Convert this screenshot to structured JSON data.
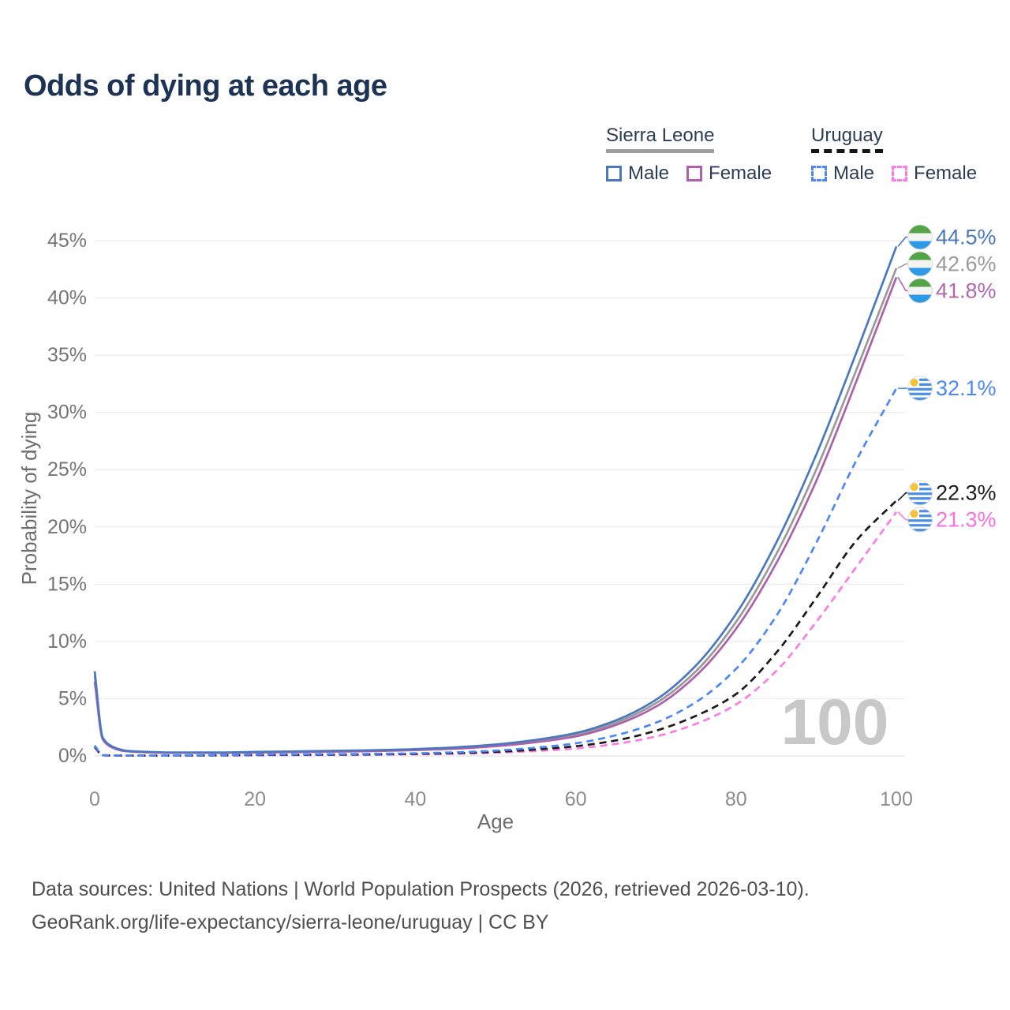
{
  "header": {
    "title": "Odds of dying at each age"
  },
  "legend": {
    "groups": [
      {
        "name": "Sierra Leone",
        "line_style": "solid",
        "underline_color": "#9e9e9e",
        "items": [
          {
            "label": "Male",
            "color": "#4a78c0",
            "dashed": false
          },
          {
            "label": "Female",
            "color": "#ac62a8",
            "dashed": false
          }
        ]
      },
      {
        "name": "Uruguay",
        "line_style": "dashed",
        "underline_color": "#151515",
        "items": [
          {
            "label": "Male",
            "color": "#4d86f5",
            "dashed": true
          },
          {
            "label": "Female",
            "color": "#fa7ce6",
            "dashed": true
          }
        ]
      }
    ]
  },
  "chart_data": {
    "type": "line",
    "title": "Odds of dying at each age",
    "xlabel": "Age",
    "ylabel": "Probability of dying",
    "xlim": [
      0,
      100
    ],
    "ylim_percent": [
      0,
      45
    ],
    "x_ticks": [
      0,
      20,
      40,
      60,
      80,
      100
    ],
    "y_ticks": [
      "0%",
      "5%",
      "10%",
      "15%",
      "20%",
      "25%",
      "30%",
      "35%",
      "40%",
      "45%"
    ],
    "grid": "horizontal",
    "age_watermark": "100",
    "x": [
      0,
      1,
      2,
      3,
      4,
      5,
      10,
      15,
      20,
      25,
      30,
      35,
      40,
      45,
      50,
      55,
      60,
      65,
      70,
      75,
      80,
      85,
      90,
      95,
      100
    ],
    "series": [
      {
        "id": "sl-male",
        "country": "Sierra Leone",
        "sex": "Male",
        "color": "#4a78c0",
        "dashed": false,
        "flag": "sierra-leone",
        "end_label": "44.5%",
        "label_color": "#4a78c0",
        "values": [
          7.4,
          1.6,
          0.9,
          0.6,
          0.45,
          0.4,
          0.3,
          0.3,
          0.35,
          0.4,
          0.45,
          0.5,
          0.6,
          0.75,
          1.0,
          1.4,
          2.0,
          3.1,
          4.9,
          7.9,
          12.4,
          18.6,
          26.3,
          35.2,
          44.5
        ]
      },
      {
        "id": "sl-both",
        "country": "Sierra Leone",
        "sex": "Both sexes",
        "color": "#9a9a9a",
        "dashed": false,
        "flag": "sierra-leone",
        "end_label": "42.6%",
        "label_color": "#9a9a9a",
        "values": [
          7.0,
          1.5,
          0.85,
          0.55,
          0.42,
          0.37,
          0.28,
          0.28,
          0.32,
          0.36,
          0.41,
          0.46,
          0.55,
          0.69,
          0.92,
          1.3,
          1.85,
          2.9,
          4.6,
          7.4,
          11.7,
          17.6,
          25.0,
          33.7,
          42.6
        ]
      },
      {
        "id": "sl-female",
        "country": "Sierra Leone",
        "sex": "Female",
        "color": "#ac62a8",
        "dashed": false,
        "flag": "sierra-leone",
        "end_label": "41.8%",
        "label_color": "#b266ae",
        "values": [
          6.5,
          1.45,
          0.8,
          0.52,
          0.4,
          0.35,
          0.26,
          0.26,
          0.29,
          0.33,
          0.37,
          0.42,
          0.51,
          0.63,
          0.85,
          1.2,
          1.7,
          2.7,
          4.3,
          7.0,
          11.1,
          16.8,
          24.0,
          32.7,
          41.8
        ]
      },
      {
        "id": "uy-male",
        "country": "Uruguay",
        "sex": "Male",
        "color": "#4d86f5",
        "dashed": true,
        "flag": "uruguay",
        "end_label": "32.1%",
        "label_color": "#4d86f5",
        "values": [
          0.9,
          0.07,
          0.05,
          0.04,
          0.035,
          0.03,
          0.03,
          0.07,
          0.11,
          0.13,
          0.15,
          0.18,
          0.23,
          0.31,
          0.46,
          0.72,
          1.1,
          1.8,
          2.9,
          4.7,
          7.6,
          12.2,
          18.6,
          25.8,
          32.1
        ]
      },
      {
        "id": "uy-both",
        "country": "Uruguay",
        "sex": "Both sexes",
        "color": "#1b1b1b",
        "dashed": true,
        "flag": "uruguay",
        "end_label": "22.3%",
        "label_color": "#1b1b1b",
        "values": [
          0.8,
          0.06,
          0.04,
          0.035,
          0.03,
          0.025,
          0.025,
          0.05,
          0.08,
          0.1,
          0.12,
          0.14,
          0.18,
          0.24,
          0.36,
          0.56,
          0.85,
          1.35,
          2.2,
          3.5,
          5.4,
          9.0,
          13.8,
          18.8,
          22.3
        ]
      },
      {
        "id": "uy-female",
        "country": "Uruguay",
        "sex": "Female",
        "color": "#fa7ce6",
        "dashed": true,
        "flag": "uruguay",
        "end_label": "21.3%",
        "label_color": "#fa6ee0",
        "values": [
          0.7,
          0.05,
          0.035,
          0.03,
          0.025,
          0.02,
          0.02,
          0.035,
          0.05,
          0.065,
          0.085,
          0.11,
          0.14,
          0.19,
          0.28,
          0.43,
          0.65,
          1.05,
          1.7,
          2.8,
          4.5,
          7.4,
          11.7,
          16.5,
          21.3
        ]
      }
    ]
  },
  "flags": {
    "sierra_leone": {
      "green": "#52a447",
      "white": "#f4f4f2",
      "blue": "#2e9ae6"
    },
    "uruguay": {
      "white": "#ffffff",
      "blue": "#4a8fe2",
      "sun": "#f4c337"
    }
  },
  "footer": {
    "lines": [
      "Data sources: United Nations | World Population Prospects (2026, retrieved 2026-03-10).",
      "GeoRank.org/life-expectancy/sierra-leone/uruguay | CC BY"
    ]
  }
}
